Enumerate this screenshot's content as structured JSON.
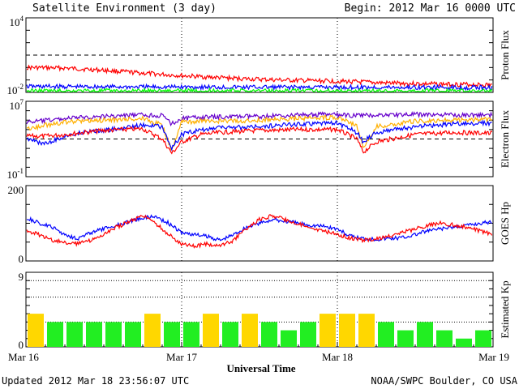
{
  "header": {
    "title": "Satellite Environment (3 day)",
    "begin": "Begin:  2012 Mar 16 0000 UTC"
  },
  "footer": {
    "updated": "Updated 2012 Mar 18 23:56:07 UTC",
    "credit": "NOAA/SWPC Boulder, CO USA"
  },
  "colors": {
    "red": "#ff0000",
    "blue": "#0000ff",
    "green": "#00ff00",
    "orange": "#ffb000",
    "purple": "#6600cc",
    "kp_yellow": "#ffd700",
    "kp_green": "#22ee22"
  },
  "chart_data": [
    {
      "type": "line",
      "ylabel": "Proton Flux",
      "yscale": "log",
      "ylim": [
        0.01,
        10000
      ],
      "ytick_labels": [
        "10^4",
        "10^-2"
      ],
      "threshold": 10,
      "x_range_hours": [
        0,
        72
      ],
      "series": [
        {
          "color": "red",
          "x": [
            0,
            6,
            12,
            18,
            24,
            30,
            36,
            42,
            48,
            54,
            60,
            66,
            72
          ],
          "y": [
            1.0,
            0.9,
            0.6,
            0.35,
            0.22,
            0.15,
            0.11,
            0.09,
            0.08,
            0.06,
            0.05,
            0.045,
            0.04
          ]
        },
        {
          "color": "blue",
          "x": [
            0,
            12,
            24,
            36,
            48,
            60,
            72
          ],
          "y": [
            0.03,
            0.028,
            0.027,
            0.026,
            0.026,
            0.025,
            0.025
          ]
        },
        {
          "color": "green",
          "x": [
            0,
            12,
            24,
            36,
            48,
            60,
            72
          ],
          "y": [
            0.013,
            0.013,
            0.013,
            0.013,
            0.013,
            0.013,
            0.013
          ]
        }
      ]
    },
    {
      "type": "line",
      "ylabel": "Electron Flux",
      "yscale": "log",
      "ylim": [
        0.1,
        10000000
      ],
      "ytick_labels": [
        "10^7",
        "10^-1"
      ],
      "threshold": 1000,
      "x_range_hours": [
        0,
        72
      ],
      "series": [
        {
          "color": "purple",
          "x": [
            0,
            3,
            6,
            9,
            12,
            15,
            18,
            21,
            22.5,
            24,
            27,
            30,
            36,
            42,
            46,
            48,
            51,
            54,
            60,
            66,
            72
          ],
          "y": [
            60000,
            90000,
            150000,
            200000,
            250000,
            300000,
            350000,
            300000,
            40000,
            150000,
            200000,
            220000,
            250000,
            350000,
            400000,
            350000,
            300000,
            350000,
            400000,
            350000,
            350000
          ]
        },
        {
          "color": "orange",
          "x": [
            0,
            3,
            6,
            9,
            12,
            15,
            18,
            21,
            22.5,
            24,
            27,
            30,
            36,
            42,
            48,
            51,
            52,
            54,
            60,
            66,
            72
          ],
          "y": [
            10000,
            30000,
            60000,
            80000,
            100000,
            120000,
            150000,
            30000,
            50,
            60000,
            80000,
            80000,
            100000,
            150000,
            200000,
            30000,
            100,
            20000,
            80000,
            100000,
            120000
          ]
        },
        {
          "color": "blue",
          "x": [
            0,
            3,
            6,
            9,
            12,
            15,
            18,
            21,
            22.5,
            24,
            27,
            30,
            36,
            42,
            48,
            51,
            52,
            54,
            60,
            66,
            72
          ],
          "y": [
            1000,
            300,
            2000,
            5000,
            8000,
            15000,
            30000,
            20000,
            100,
            3000,
            10000,
            15000,
            20000,
            40000,
            50000,
            5000,
            500,
            5000,
            20000,
            40000,
            50000
          ]
        },
        {
          "color": "red",
          "x": [
            0,
            3,
            6,
            9,
            12,
            15,
            18,
            21,
            22.5,
            24,
            27,
            30,
            36,
            42,
            48,
            51,
            52,
            54,
            60,
            66,
            72
          ],
          "y": [
            2000,
            2000,
            3000,
            5000,
            8000,
            10000,
            12000,
            1000,
            30,
            500,
            3000,
            5000,
            8000,
            10000,
            10000,
            1000,
            40,
            500,
            3000,
            5000,
            4000
          ]
        }
      ]
    },
    {
      "type": "line",
      "ylabel": "GOES Hp",
      "ylim": [
        0,
        200
      ],
      "ytick_labels": [
        "200",
        "0"
      ],
      "x_range_hours": [
        0,
        72
      ],
      "series": [
        {
          "color": "blue",
          "x": [
            0,
            2,
            4,
            6,
            8,
            10,
            12,
            14,
            16,
            18,
            20,
            22,
            24,
            26,
            28,
            30,
            32,
            34,
            36,
            38,
            40,
            42,
            44,
            46,
            48,
            50,
            52,
            54,
            56,
            58,
            60,
            62,
            64,
            66,
            68,
            70,
            72
          ],
          "y": [
            115,
            100,
            90,
            70,
            60,
            75,
            85,
            95,
            105,
            115,
            118,
            100,
            75,
            70,
            65,
            55,
            70,
            90,
            100,
            110,
            105,
            100,
            95,
            92,
            85,
            65,
            60,
            58,
            60,
            62,
            70,
            80,
            85,
            90,
            95,
            100,
            105
          ]
        },
        {
          "color": "red",
          "x": [
            0,
            2,
            4,
            6,
            8,
            10,
            12,
            14,
            16,
            18,
            20,
            22,
            24,
            26,
            28,
            30,
            32,
            34,
            36,
            38,
            40,
            42,
            44,
            46,
            48,
            50,
            52,
            54,
            56,
            58,
            60,
            62,
            64,
            66,
            68,
            70,
            72
          ],
          "y": [
            80,
            70,
            55,
            50,
            45,
            55,
            70,
            90,
            105,
            120,
            100,
            70,
            45,
            40,
            45,
            40,
            55,
            85,
            110,
            120,
            110,
            100,
            85,
            80,
            70,
            60,
            55,
            60,
            65,
            75,
            85,
            95,
            100,
            95,
            90,
            80,
            70
          ]
        }
      ]
    },
    {
      "type": "bar",
      "ylabel": "Estimated Kp",
      "ylim": [
        0,
        9
      ],
      "ytick_labels": [
        "9",
        "0"
      ],
      "xlabel": "Universal Time",
      "x_tick_labels": [
        "Mar 16",
        "Mar 17",
        "Mar 18",
        "Mar 19"
      ],
      "bar_hours": 3,
      "values": [
        4,
        3,
        3,
        3,
        3,
        3,
        4,
        3,
        3,
        4,
        3,
        4,
        3,
        2,
        3,
        4,
        4,
        4,
        3,
        2,
        3,
        2,
        1,
        2
      ],
      "threshold_yellow": 4
    }
  ]
}
